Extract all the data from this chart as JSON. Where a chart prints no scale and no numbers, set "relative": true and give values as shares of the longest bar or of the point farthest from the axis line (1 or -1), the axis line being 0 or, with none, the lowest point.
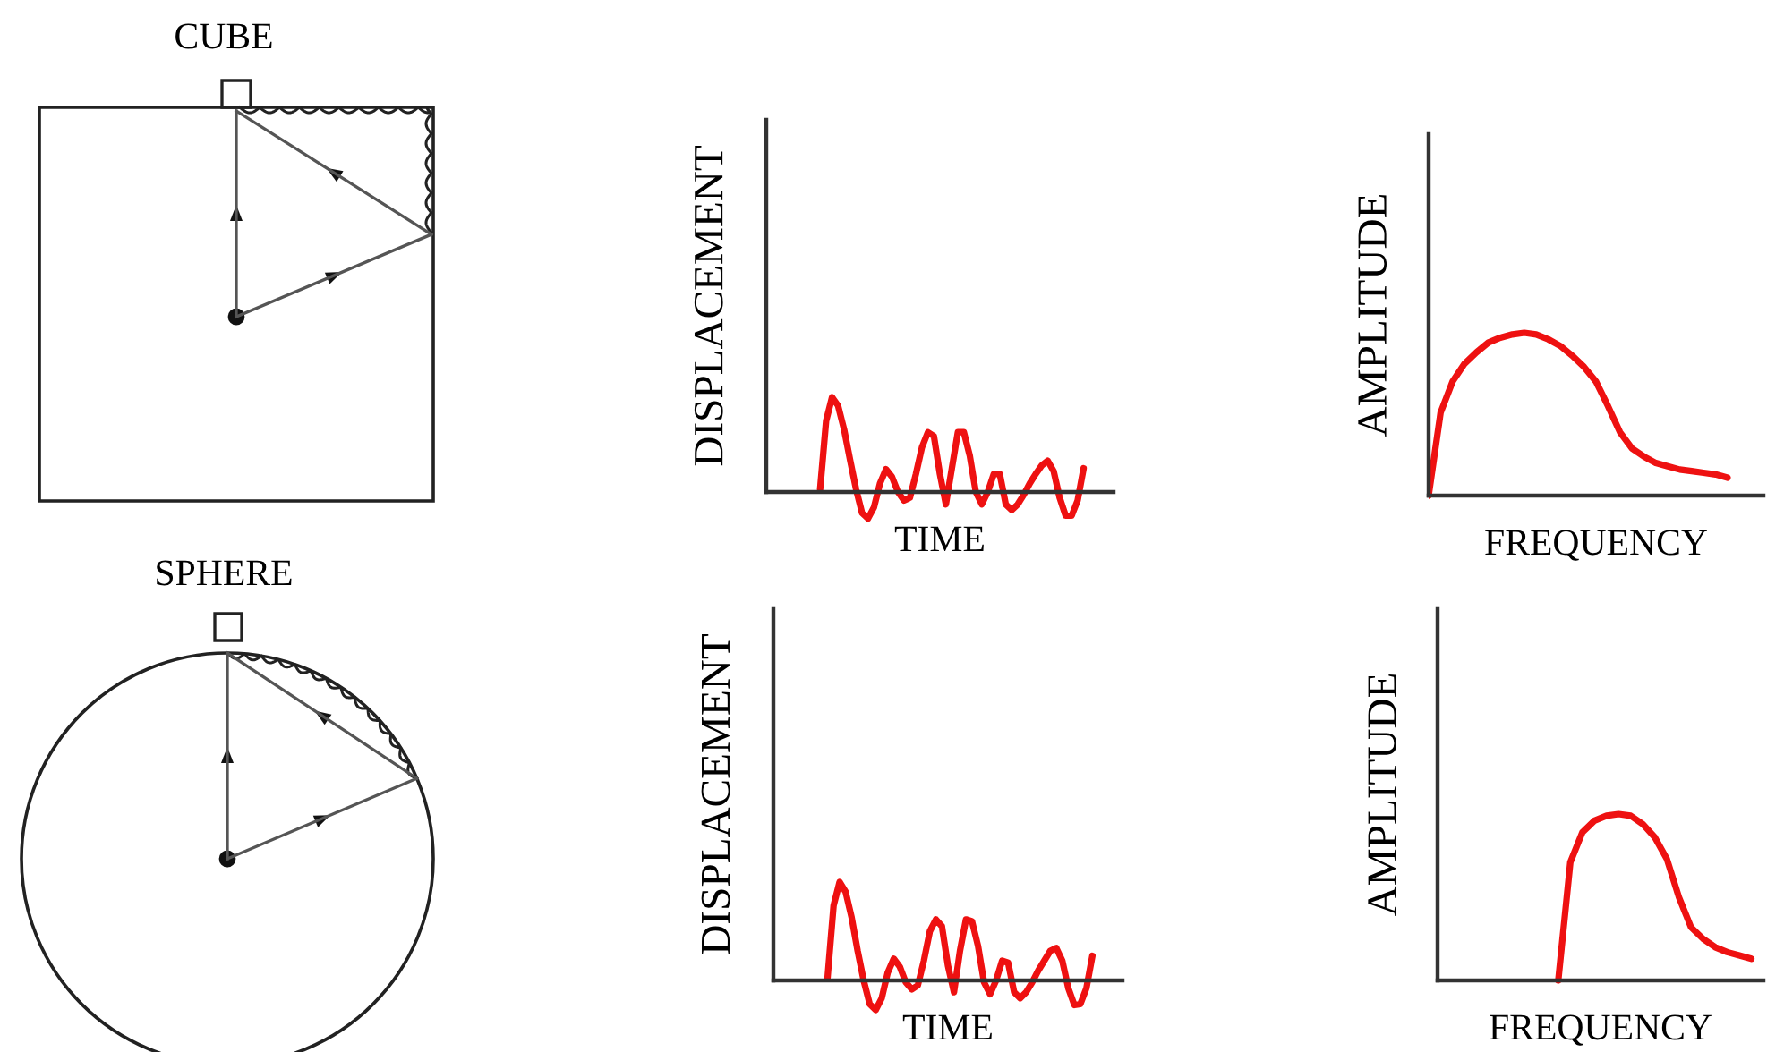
{
  "chart_data": [
    {
      "type": "other",
      "title": "CUBE"
    },
    {
      "type": "line",
      "relative": true,
      "ylabel": "DISPLACEMENT",
      "xlabel": "TIME",
      "categories": [
        null,
        null,
        null,
        null,
        null,
        null,
        null,
        null,
        null,
        null,
        null,
        null,
        null,
        null,
        null,
        null,
        null,
        null,
        null,
        null,
        null,
        null,
        null,
        null,
        null,
        null,
        null,
        null,
        null,
        null,
        null,
        null,
        null,
        null,
        null,
        null,
        null,
        null,
        null,
        null,
        null,
        null,
        null,
        null,
        null,
        null,
        null,
        null,
        null,
        null,
        null,
        null,
        null,
        null,
        null,
        null,
        null,
        null,
        null
      ],
      "series": [
        {
          "color": "#ee1111",
          "values": [
            null,
            null,
            null,
            null,
            null,
            null,
            null,
            null,
            null,
            0.03,
            0.75,
            1,
            0.91,
            0.66,
            0.34,
            0.03,
            -0.22,
            -0.28,
            -0.16,
            0.09,
            0.24,
            0.16,
            0,
            -0.09,
            -0.06,
            0.19,
            0.47,
            0.63,
            0.59,
            0.19,
            -0.13,
            0.25,
            0.63,
            0.63,
            0.38,
            0,
            -0.13,
            0,
            0.19,
            0.19,
            -0.13,
            -0.19,
            -0.13,
            -0.03,
            0.09,
            0.19,
            0.28,
            0.33,
            0.22,
            -0.06,
            -0.25,
            -0.25,
            -0.09,
            0.25,
            null,
            null,
            null,
            null,
            null
          ]
        }
      ]
    },
    {
      "type": "line",
      "relative": true,
      "ylabel": "AMPLITUDE",
      "xlabel": "FREQUENCY",
      "categories": [
        null,
        null,
        null,
        null,
        null,
        null,
        null,
        null,
        null,
        null,
        null,
        null,
        null,
        null,
        null,
        null,
        null,
        null,
        null,
        null,
        null,
        null,
        null,
        null,
        null,
        null,
        null,
        null,
        null
      ],
      "series": [
        {
          "color": "#ee1111",
          "values": [
            0,
            0.51,
            0.7,
            0.81,
            0.88,
            0.94,
            0.97,
            0.99,
            1,
            0.99,
            0.96,
            0.92,
            0.86,
            0.79,
            0.7,
            0.55,
            0.39,
            0.29,
            0.24,
            0.2,
            0.18,
            0.16,
            0.15,
            0.14,
            0.13,
            0.11,
            null,
            null,
            null
          ]
        }
      ]
    },
    {
      "type": "other",
      "title": "SPHERE"
    },
    {
      "type": "line",
      "relative": true,
      "ylabel": "DISPLACEMENT",
      "xlabel": "TIME",
      "categories": [
        null,
        null,
        null,
        null,
        null,
        null,
        null,
        null,
        null,
        null,
        null,
        null,
        null,
        null,
        null,
        null,
        null,
        null,
        null,
        null,
        null,
        null,
        null,
        null,
        null,
        null,
        null,
        null,
        null,
        null,
        null,
        null,
        null,
        null,
        null,
        null,
        null,
        null,
        null,
        null,
        null,
        null,
        null,
        null,
        null,
        null,
        null,
        null,
        null,
        null,
        null,
        null,
        null,
        null,
        null,
        null,
        null,
        null,
        null
      ],
      "series": [
        {
          "color": "#ee1111",
          "values": [
            null,
            null,
            null,
            null,
            null,
            null,
            null,
            null,
            null,
            0.03,
            0.76,
            1,
            0.9,
            0.64,
            0.3,
            0,
            -0.24,
            -0.3,
            -0.18,
            0.08,
            0.22,
            0.14,
            -0.02,
            -0.09,
            -0.05,
            0.2,
            0.5,
            0.62,
            0.55,
            0.15,
            -0.12,
            0.3,
            0.62,
            0.6,
            0.35,
            -0.02,
            -0.14,
            0,
            0.2,
            0.18,
            -0.12,
            -0.18,
            -0.12,
            -0.02,
            0.1,
            0.2,
            0.3,
            0.33,
            0.2,
            -0.08,
            -0.25,
            -0.24,
            -0.08,
            0.25,
            null,
            null,
            null,
            null,
            null
          ]
        }
      ]
    },
    {
      "type": "line",
      "relative": true,
      "ylabel": "AMPLITUDE",
      "xlabel": "FREQUENCY",
      "categories": [
        null,
        null,
        null,
        null,
        null,
        null,
        null,
        null,
        null,
        null,
        null,
        null,
        null,
        null,
        null,
        null,
        null,
        null,
        null,
        null,
        null,
        null,
        null,
        null,
        null,
        null,
        null,
        null
      ],
      "series": [
        {
          "color": "#ee1111",
          "values": [
            null,
            null,
            null,
            null,
            null,
            null,
            null,
            null,
            null,
            null,
            0,
            0.71,
            0.89,
            0.96,
            0.99,
            1,
            0.99,
            0.94,
            0.86,
            0.73,
            0.5,
            0.32,
            0.25,
            0.2,
            0.17,
            0.15,
            0.13,
            null
          ]
        }
      ]
    }
  ]
}
